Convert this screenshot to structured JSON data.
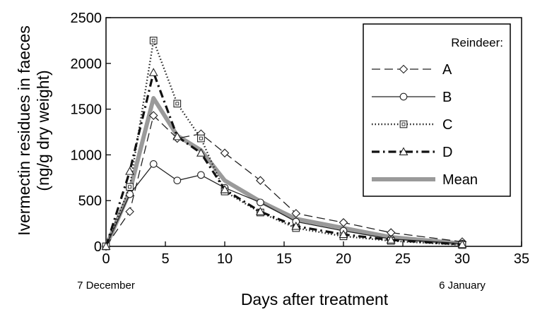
{
  "chart_data": {
    "type": "line",
    "xlabel": "Days after treatment",
    "ylabel_line1": "Ivermectin residues in faeces",
    "ylabel_line2": "(ng/g dry weight)",
    "xlim": [
      0,
      35
    ],
    "ylim": [
      0,
      2500
    ],
    "x_ticks": [
      "0",
      "5",
      "10",
      "15",
      "20",
      "25",
      "30",
      "35"
    ],
    "y_ticks": [
      "0",
      "500",
      "1000",
      "1500",
      "2000",
      "2500"
    ],
    "date_labels": [
      {
        "text": "7 December",
        "x": 0
      },
      {
        "text": "6 January",
        "x": 30
      }
    ],
    "legend_title": "Reindeer:",
    "legend_position": "top-right",
    "grid": false,
    "series": [
      {
        "name": "A",
        "style": "dashed",
        "marker": "diamond",
        "x": [
          0,
          2,
          4,
          6,
          8,
          10,
          13,
          16,
          20,
          24,
          30
        ],
        "y": [
          0,
          380,
          1430,
          1180,
          1230,
          1020,
          720,
          360,
          260,
          150,
          50
        ]
      },
      {
        "name": "B",
        "style": "solid",
        "marker": "circle",
        "x": [
          0,
          2,
          4,
          6,
          8,
          10,
          13,
          16,
          20,
          24,
          30
        ],
        "y": [
          0,
          570,
          900,
          720,
          780,
          640,
          480,
          270,
          170,
          80,
          30
        ]
      },
      {
        "name": "C",
        "style": "dotted",
        "marker": "square",
        "x": [
          0,
          2,
          4,
          6,
          8,
          10,
          13,
          16,
          20,
          24,
          30
        ],
        "y": [
          0,
          650,
          2250,
          1560,
          1180,
          600,
          370,
          200,
          110,
          60,
          15
        ]
      },
      {
        "name": "D",
        "style": "dashdot",
        "marker": "triangle",
        "x": [
          0,
          2,
          4,
          6,
          8,
          10,
          13,
          16,
          20,
          24,
          30
        ],
        "y": [
          0,
          820,
          1900,
          1200,
          1020,
          620,
          380,
          220,
          130,
          70,
          20
        ]
      },
      {
        "name": "Mean",
        "style": "thick",
        "marker": "none",
        "x": [
          0,
          2,
          4,
          6,
          8,
          10,
          13,
          16,
          20,
          24,
          30
        ],
        "y": [
          0,
          600,
          1620,
          1210,
          1050,
          720,
          490,
          300,
          200,
          100,
          30
        ]
      }
    ]
  }
}
